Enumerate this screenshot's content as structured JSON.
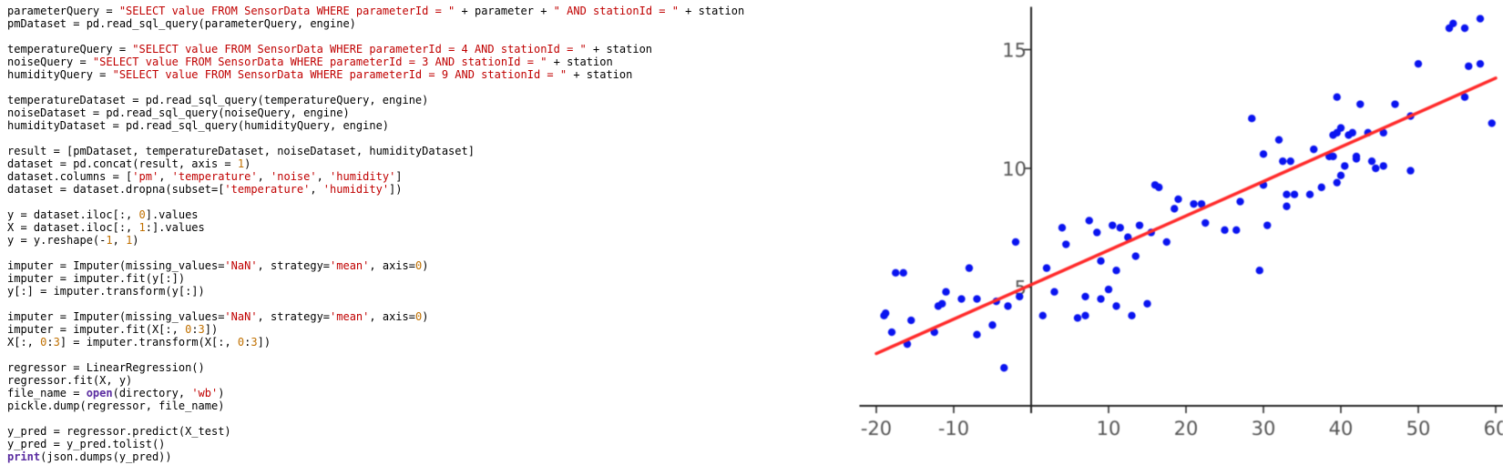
{
  "code": {
    "lines": [
      [
        [
          "parameterQuery = ",
          "plain"
        ],
        [
          "\"SELECT value FROM SensorData WHERE parameterId = \"",
          "str"
        ],
        [
          " + parameter + ",
          "plain"
        ],
        [
          "\" AND stationId = \"",
          "str"
        ],
        [
          " + station",
          "plain"
        ]
      ],
      [
        [
          "pmDataset = pd.read_sql_query(parameterQuery, engine)",
          "plain"
        ]
      ],
      [],
      [
        [
          "temperatureQuery = ",
          "plain"
        ],
        [
          "\"SELECT value FROM SensorData WHERE parameterId = 4 AND stationId = \"",
          "str"
        ],
        [
          " + station",
          "plain"
        ]
      ],
      [
        [
          "noiseQuery = ",
          "plain"
        ],
        [
          "\"SELECT value FROM SensorData WHERE parameterId = 3 AND stationId = \"",
          "str"
        ],
        [
          " + station",
          "plain"
        ]
      ],
      [
        [
          "humidityQuery = ",
          "plain"
        ],
        [
          "\"SELECT value FROM SensorData WHERE parameterId = 9 AND stationId = \"",
          "str"
        ],
        [
          " + station",
          "plain"
        ]
      ],
      [],
      [
        [
          "temperatureDataset = pd.read_sql_query(temperatureQuery, engine)",
          "plain"
        ]
      ],
      [
        [
          "noiseDataset = pd.read_sql_query(noiseQuery, engine)",
          "plain"
        ]
      ],
      [
        [
          "humidityDataset = pd.read_sql_query(humidityQuery, engine)",
          "plain"
        ]
      ],
      [],
      [
        [
          "result = [pmDataset, temperatureDataset, noiseDataset, humidityDataset]",
          "plain"
        ]
      ],
      [
        [
          "dataset = pd.concat(result, axis = ",
          "plain"
        ],
        [
          "1",
          "num"
        ],
        [
          ")",
          "plain"
        ]
      ],
      [
        [
          "dataset.columns = [",
          "plain"
        ],
        [
          "'pm'",
          "str"
        ],
        [
          ", ",
          "plain"
        ],
        [
          "'temperature'",
          "str"
        ],
        [
          ", ",
          "plain"
        ],
        [
          "'noise'",
          "str"
        ],
        [
          ", ",
          "plain"
        ],
        [
          "'humidity'",
          "str"
        ],
        [
          "]",
          "plain"
        ]
      ],
      [
        [
          "dataset = dataset.dropna(subset=[",
          "plain"
        ],
        [
          "'temperature'",
          "str"
        ],
        [
          ", ",
          "plain"
        ],
        [
          "'humidity'",
          "str"
        ],
        [
          "])",
          "plain"
        ]
      ],
      [],
      [
        [
          "y = dataset.iloc[:, ",
          "plain"
        ],
        [
          "0",
          "num"
        ],
        [
          "].values",
          "plain"
        ]
      ],
      [
        [
          "X = dataset.iloc[:, ",
          "plain"
        ],
        [
          "1",
          "num"
        ],
        [
          ":].values",
          "plain"
        ]
      ],
      [
        [
          "y = y.reshape(-",
          "plain"
        ],
        [
          "1",
          "num"
        ],
        [
          ", ",
          "plain"
        ],
        [
          "1",
          "num"
        ],
        [
          ")",
          "plain"
        ]
      ],
      [],
      [
        [
          "imputer = Imputer(missing_values=",
          "plain"
        ],
        [
          "'NaN'",
          "str"
        ],
        [
          ", strategy=",
          "plain"
        ],
        [
          "'mean'",
          "str"
        ],
        [
          ", axis=",
          "plain"
        ],
        [
          "0",
          "num"
        ],
        [
          ")",
          "plain"
        ]
      ],
      [
        [
          "imputer = imputer.fit(y[:])",
          "plain"
        ]
      ],
      [
        [
          "y[:] = imputer.transform(y[:])",
          "plain"
        ]
      ],
      [],
      [
        [
          "imputer = Imputer(missing_values=",
          "plain"
        ],
        [
          "'NaN'",
          "str"
        ],
        [
          ", strategy=",
          "plain"
        ],
        [
          "'mean'",
          "str"
        ],
        [
          ", axis=",
          "plain"
        ],
        [
          "0",
          "num"
        ],
        [
          ")",
          "plain"
        ]
      ],
      [
        [
          "imputer = imputer.fit(X[:, ",
          "plain"
        ],
        [
          "0",
          "num"
        ],
        [
          ":",
          "plain"
        ],
        [
          "3",
          "num"
        ],
        [
          "])",
          "plain"
        ]
      ],
      [
        [
          "X[:, ",
          "plain"
        ],
        [
          "0",
          "num"
        ],
        [
          ":",
          "plain"
        ],
        [
          "3",
          "num"
        ],
        [
          "] = imputer.transform(X[:, ",
          "plain"
        ],
        [
          "0",
          "num"
        ],
        [
          ":",
          "plain"
        ],
        [
          "3",
          "num"
        ],
        [
          "])",
          "plain"
        ]
      ],
      [],
      [
        [
          "regressor = LinearRegression()",
          "plain"
        ]
      ],
      [
        [
          "regressor.fit(X, y)",
          "plain"
        ]
      ],
      [
        [
          "file_name = ",
          "plain"
        ],
        [
          "open",
          "kw"
        ],
        [
          "(directory, ",
          "plain"
        ],
        [
          "'wb'",
          "str"
        ],
        [
          ")",
          "plain"
        ]
      ],
      [
        [
          "pickle.dump(regressor, file_name)",
          "plain"
        ]
      ],
      [],
      [
        [
          "y_pred = regressor.predict(X_test)",
          "plain"
        ]
      ],
      [
        [
          "y_pred = y_pred.tolist()",
          "plain"
        ]
      ],
      [
        [
          "print",
          "kw"
        ],
        [
          "(json.dumps(y_pred))",
          "plain"
        ]
      ]
    ]
  },
  "colors": {
    "point": "#0a14f0",
    "line": "#ff2a2a",
    "axis": "#222222",
    "string": "#c00000",
    "number": "#c07000",
    "keyword": "#5a2ca0"
  },
  "chart_data": {
    "type": "scatter",
    "title": "",
    "xlabel": "",
    "ylabel": "",
    "xlim": [
      -21,
      61
    ],
    "ylim": [
      -0.2,
      16.8
    ],
    "x_ticks": [
      -20,
      -10,
      10,
      20,
      30,
      40,
      50,
      60
    ],
    "x_tick_labels": [
      "-20",
      "-10",
      "10",
      "20",
      "30",
      "40",
      "50",
      "60"
    ],
    "y_ticks": [
      5,
      10,
      15
    ],
    "y_tick_labels": [
      "5",
      "10",
      "15"
    ],
    "grid": false,
    "series": [
      {
        "points": [
          [
            -19,
            3.8
          ],
          [
            -18.8,
            3.9
          ],
          [
            -17.5,
            5.6
          ],
          [
            -16.5,
            5.6
          ],
          [
            -16,
            2.6
          ],
          [
            -15.5,
            3.6
          ],
          [
            -18,
            3.1
          ],
          [
            -12.5,
            3.1
          ],
          [
            -12,
            4.2
          ],
          [
            -11.5,
            4.3
          ],
          [
            -11,
            4.8
          ],
          [
            -9,
            4.5
          ],
          [
            -8,
            5.8
          ],
          [
            -7,
            4.5
          ],
          [
            -7,
            3
          ],
          [
            -5,
            3.4
          ],
          [
            -4.5,
            4.4
          ],
          [
            -3.5,
            1.6
          ],
          [
            -3,
            4.2
          ],
          [
            -2,
            6.9
          ],
          [
            -1.5,
            4.6
          ],
          [
            1.5,
            3.8
          ],
          [
            2,
            5.8
          ],
          [
            3,
            4.8
          ],
          [
            4,
            7.5
          ],
          [
            4.5,
            6.8
          ],
          [
            6,
            3.7
          ],
          [
            7,
            4.6
          ],
          [
            7,
            3.8
          ],
          [
            7.5,
            7.8
          ],
          [
            8.5,
            7.3
          ],
          [
            9,
            6.1
          ],
          [
            9,
            4.5
          ],
          [
            10,
            4.9
          ],
          [
            10.5,
            7.6
          ],
          [
            11,
            5.7
          ],
          [
            11,
            4.2
          ],
          [
            11.5,
            7.5
          ],
          [
            12.5,
            7.1
          ],
          [
            13,
            3.8
          ],
          [
            13.5,
            6.3
          ],
          [
            14,
            7.6
          ],
          [
            15,
            4.3
          ],
          [
            15.5,
            7.3
          ],
          [
            16,
            9.3
          ],
          [
            16.5,
            9.2
          ],
          [
            17.5,
            6.9
          ],
          [
            18.5,
            8.3
          ],
          [
            19,
            8.7
          ],
          [
            21,
            8.5
          ],
          [
            22,
            8.5
          ],
          [
            22.5,
            7.7
          ],
          [
            25,
            7.4
          ],
          [
            26.5,
            7.4
          ],
          [
            27,
            8.6
          ],
          [
            28.5,
            12.1
          ],
          [
            29.5,
            5.7
          ],
          [
            30,
            10.6
          ],
          [
            30,
            9.3
          ],
          [
            30.5,
            7.6
          ],
          [
            32,
            11.2
          ],
          [
            32.5,
            10.3
          ],
          [
            33,
            8.9
          ],
          [
            33,
            8.4
          ],
          [
            33.5,
            10.3
          ],
          [
            34,
            8.9
          ],
          [
            36,
            8.9
          ],
          [
            36.5,
            10.8
          ],
          [
            37.5,
            9.2
          ],
          [
            38.5,
            10.5
          ],
          [
            39,
            11.4
          ],
          [
            39,
            10.5
          ],
          [
            39.5,
            13
          ],
          [
            39.5,
            11.5
          ],
          [
            39.5,
            9.4
          ],
          [
            40,
            11.7
          ],
          [
            40,
            9.7
          ],
          [
            40.5,
            10.1
          ],
          [
            41,
            11.4
          ],
          [
            41.5,
            11.5
          ],
          [
            42,
            10.5
          ],
          [
            42,
            10.4
          ],
          [
            42.5,
            12.7
          ],
          [
            43.5,
            11.5
          ],
          [
            44,
            10.3
          ],
          [
            44.5,
            10
          ],
          [
            45.5,
            10.1
          ],
          [
            45.5,
            11.5
          ],
          [
            47,
            12.7
          ],
          [
            49,
            9.9
          ],
          [
            49,
            12.2
          ],
          [
            50,
            14.4
          ],
          [
            54,
            15.9
          ],
          [
            54.5,
            16.1
          ],
          [
            56,
            15.9
          ],
          [
            56,
            13
          ],
          [
            56.5,
            14.3
          ],
          [
            58,
            16.3
          ],
          [
            58,
            14.4
          ],
          [
            59.5,
            11.9
          ]
        ]
      }
    ],
    "trend_line": {
      "x": [
        -20,
        60
      ],
      "y": [
        2.2,
        13.8
      ]
    }
  }
}
